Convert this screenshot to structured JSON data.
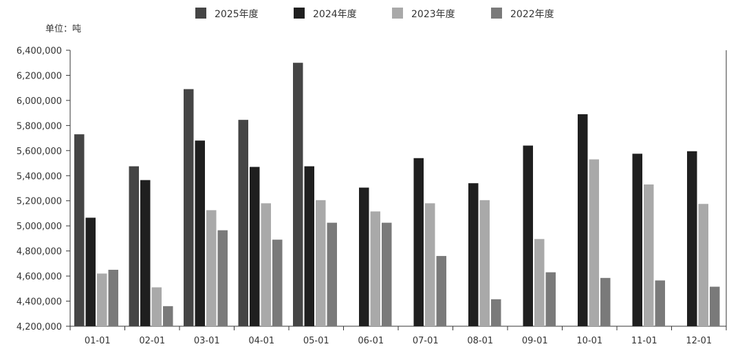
{
  "chart_data": {
    "type": "bar",
    "unit_label": "单位：吨",
    "categories": [
      "01-01",
      "02-01",
      "03-01",
      "04-01",
      "05-01",
      "06-01",
      "07-01",
      "08-01",
      "09-01",
      "10-01",
      "11-01",
      "12-01"
    ],
    "series": [
      {
        "name": "2025年度",
        "color": "#454545",
        "values": [
          5730000,
          5475000,
          6090000,
          5845000,
          6300000,
          null,
          null,
          null,
          null,
          null,
          null,
          null
        ]
      },
      {
        "name": "2024年度",
        "color": "#1f1f1f",
        "values": [
          5065000,
          5365000,
          5680000,
          5470000,
          5475000,
          5305000,
          5540000,
          5340000,
          5640000,
          5890000,
          5575000,
          5595000
        ]
      },
      {
        "name": "2023年度",
        "color": "#a9a9a9",
        "values": [
          4620000,
          4510000,
          5125000,
          5180000,
          5205000,
          5115000,
          5180000,
          5205000,
          4895000,
          5530000,
          5330000,
          5175000
        ]
      },
      {
        "name": "2022年度",
        "color": "#7a7a7a",
        "values": [
          4650000,
          4360000,
          4965000,
          4890000,
          5025000,
          5025000,
          4760000,
          4415000,
          4630000,
          4585000,
          4565000,
          4515000
        ]
      }
    ],
    "ylim": [
      4200000,
      6400000
    ],
    "yticks": [
      "4,200,000",
      "4,400,000",
      "4,600,000",
      "4,800,000",
      "5,000,000",
      "5,200,000",
      "5,400,000",
      "5,600,000",
      "5,800,000",
      "6,000,000",
      "6,200,000",
      "6,400,000"
    ],
    "ytick_values": [
      4200000,
      4400000,
      4600000,
      4800000,
      5000000,
      5200000,
      5400000,
      5600000,
      5800000,
      6000000,
      6200000,
      6400000
    ],
    "legend_position": "top-center",
    "grid": false
  }
}
